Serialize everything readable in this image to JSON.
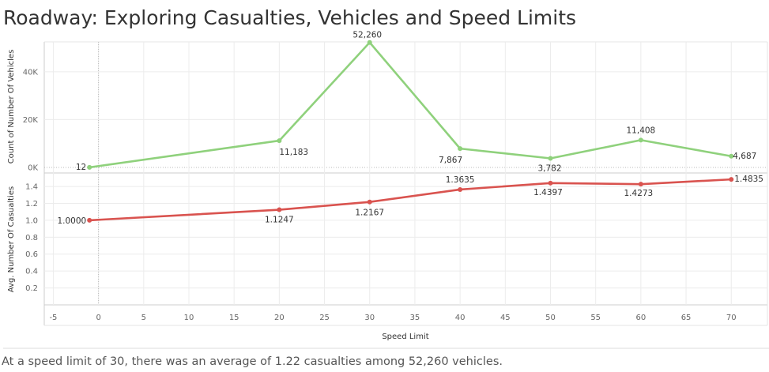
{
  "title": "Roadway: Exploring Casualties, Vehicles and Speed Limits",
  "caption": "At a speed limit of 30, there was an average of 1.22 casualties among 52,260 vehicles.",
  "colors": {
    "vehicles": "#8fd17c",
    "casualties": "#d9534f",
    "grid": "#ececec",
    "axis": "#cccccc"
  },
  "chart_data": [
    {
      "type": "line",
      "title": "",
      "xlabel": "Speed Limit",
      "ylabel": "Count of Number Of Vehicles",
      "xlim": [
        -6,
        74
      ],
      "ylim": [
        -2000,
        52500
      ],
      "yticks": [
        0,
        20000,
        40000
      ],
      "ytick_labels": [
        "0K",
        "20K",
        "40K"
      ],
      "x": [
        -1,
        20,
        30,
        40,
        50,
        60,
        70
      ],
      "series": [
        {
          "name": "",
          "values": [
            12,
            11183,
            52260,
            7867,
            3782,
            11408,
            4687
          ],
          "labels": [
            "12",
            "11,183",
            "52,260",
            "7,867",
            "3,782",
            "11,408",
            "4,687"
          ]
        }
      ]
    },
    {
      "type": "line",
      "title": "",
      "xlabel": "Speed Limit",
      "ylabel": "Avg. Number Of Casualties",
      "xlim": [
        -6,
        74
      ],
      "ylim": [
        0,
        1.55
      ],
      "yticks": [
        0.2,
        0.4,
        0.6,
        0.8,
        1.0,
        1.2,
        1.4
      ],
      "ytick_labels": [
        "0.2",
        "0.4",
        "0.6",
        "0.8",
        "1.0",
        "1.2",
        "1.4"
      ],
      "xticks": [
        -5,
        0,
        5,
        10,
        15,
        20,
        25,
        30,
        35,
        40,
        45,
        50,
        55,
        60,
        65,
        70
      ],
      "x": [
        -1,
        20,
        30,
        40,
        50,
        60,
        70
      ],
      "series": [
        {
          "name": "",
          "values": [
            1.0,
            1.1247,
            1.2167,
            1.3635,
            1.4397,
            1.4273,
            1.4835
          ],
          "labels": [
            "1.0000",
            "1.1247",
            "1.2167",
            "1.3635",
            "1.4397",
            "1.4273",
            "1.4835"
          ]
        }
      ]
    }
  ]
}
